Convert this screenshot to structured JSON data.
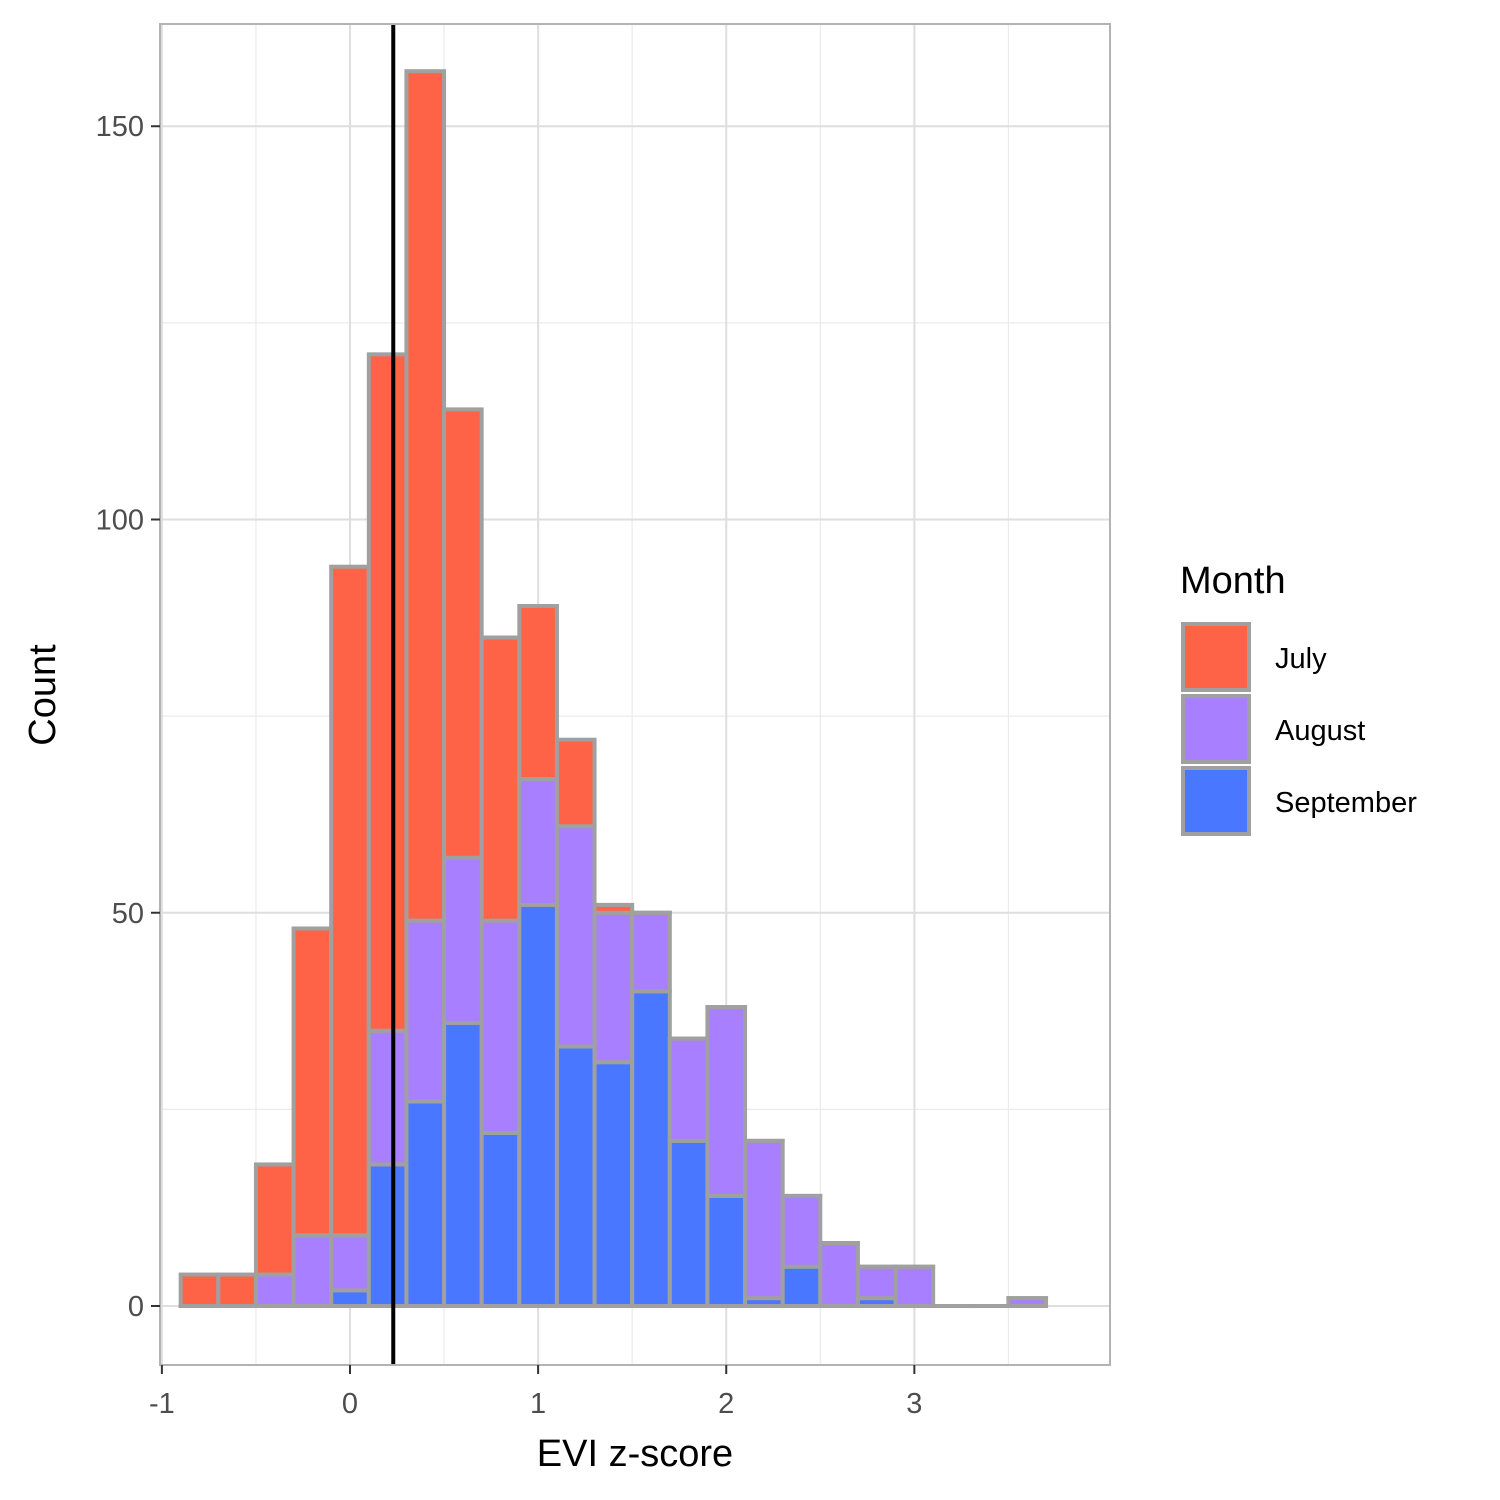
{
  "chart_data": {
    "type": "bar",
    "stacked": true,
    "xlabel": "EVI z-score",
    "ylabel": "Count",
    "xlim": [
      -1.01,
      4.04
    ],
    "ylim": [
      -7.5,
      163
    ],
    "x_ticks": [
      -1,
      0,
      1,
      2,
      3
    ],
    "x_tick_labels": [
      "-1",
      "0",
      "1",
      "2",
      "3"
    ],
    "y_ticks": [
      0,
      50,
      100,
      150
    ],
    "y_tick_labels": [
      "0",
      "50",
      "100",
      "150"
    ],
    "y_minor_ticks": [
      25,
      75,
      125
    ],
    "x_minor_ticks": [
      -0.5,
      0.5,
      1.5,
      2.5,
      3.5
    ],
    "grid": true,
    "bin_width": 0.2,
    "bins_start": [
      -0.9,
      -0.7,
      -0.5,
      -0.3,
      -0.1,
      0.1,
      0.3,
      0.5,
      0.7,
      0.9,
      1.1,
      1.3,
      1.5,
      1.7,
      1.9,
      2.1,
      2.3,
      2.5,
      2.7,
      2.9,
      3.1,
      3.3,
      3.5
    ],
    "series": [
      {
        "name": "September",
        "color": "#4a77ff",
        "values": [
          0,
          0,
          0,
          0,
          2,
          18,
          26,
          36,
          22,
          51,
          33,
          31,
          40,
          21,
          14,
          1,
          5,
          0,
          1,
          0,
          0,
          0,
          0
        ]
      },
      {
        "name": "August",
        "color": "#a77fff",
        "values": [
          0,
          0,
          4,
          9,
          7,
          17,
          23,
          21,
          27,
          16,
          28,
          19,
          10,
          13,
          24,
          20,
          9,
          8,
          4,
          5,
          0,
          0,
          1
        ]
      },
      {
        "name": "July",
        "color": "#ff6347",
        "values": [
          4,
          4,
          14,
          39,
          85,
          86,
          108,
          57,
          36,
          22,
          11,
          1,
          0,
          0,
          0,
          0,
          0,
          0,
          0,
          0,
          0,
          0,
          0
        ]
      }
    ],
    "vline": {
      "x": 0.23,
      "color": "#000000"
    },
    "bar_outline": "#a0a0a0",
    "legend": {
      "title": "Month",
      "placement": "right",
      "entries": [
        {
          "label": "July",
          "color": "#ff6347"
        },
        {
          "label": "August",
          "color": "#a77fff"
        },
        {
          "label": "September",
          "color": "#4a77ff"
        }
      ]
    }
  }
}
